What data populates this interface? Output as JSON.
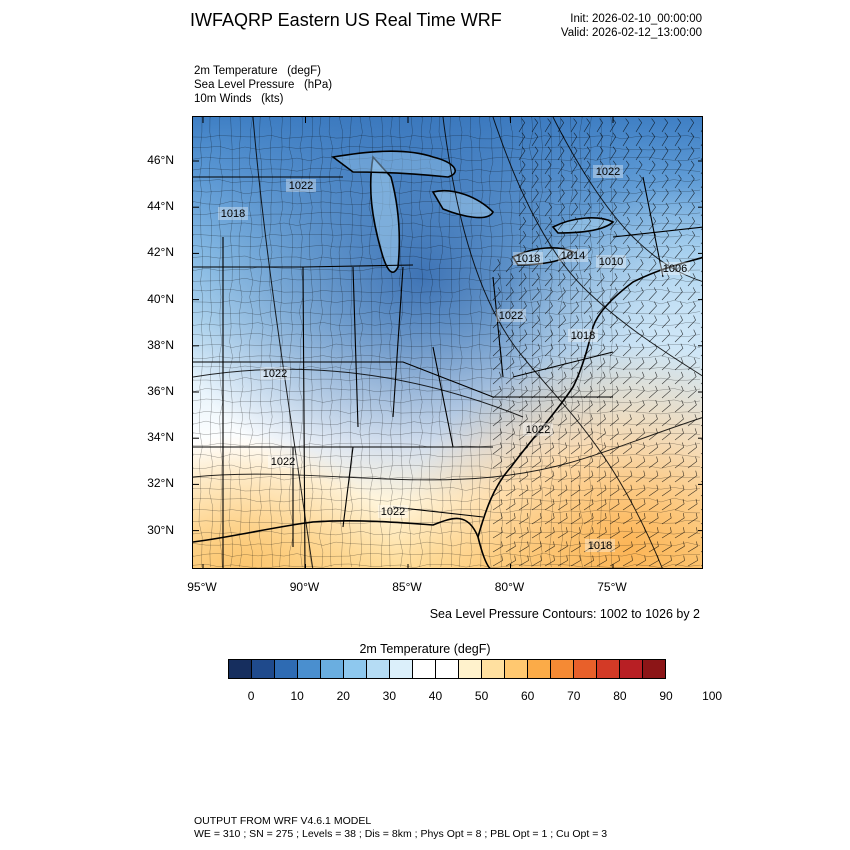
{
  "header": {
    "title": "IWFAQRP Eastern US Real Time WRF",
    "init": "Init: 2026-02-10_00:00:00",
    "valid": "Valid: 2026-02-12_13:00:00"
  },
  "fields": [
    "2m Temperature   (degF)",
    "Sea Level Pressure   (hPa)",
    "10m Winds   (kts)"
  ],
  "map": {
    "lat_labels": [
      "46°N",
      "44°N",
      "42°N",
      "40°N",
      "38°N",
      "36°N",
      "34°N",
      "32°N",
      "30°N"
    ],
    "lat_values": [
      46,
      44,
      42,
      40,
      38,
      36,
      34,
      32,
      30
    ],
    "lon_labels": [
      "95°W",
      "90°W",
      "85°W",
      "80°W",
      "75°W"
    ],
    "lon_values": [
      -95,
      -90,
      -85,
      -80,
      -75
    ],
    "isobar_labels": [
      "1022",
      "1018",
      "1022",
      "1018",
      "1014",
      "1010",
      "1006",
      "1022",
      "1018",
      "1022",
      "1022",
      "1022",
      "1022",
      "1018"
    ],
    "contour_note": "Sea Level Pressure Contours: 1002 to 1026 by 2"
  },
  "colorbar": {
    "title": "2m Temperature  (degF)",
    "ticks": [
      "0",
      "10",
      "20",
      "30",
      "40",
      "50",
      "60",
      "70",
      "80",
      "90",
      "100"
    ],
    "colors": [
      "#162e5e",
      "#1f4a8c",
      "#2e6bb3",
      "#4a8fcf",
      "#6aaee0",
      "#8ec8ee",
      "#b5dcf4",
      "#dbeffa",
      "#ffffff",
      "#ffffff",
      "#fff2cc",
      "#ffe0a0",
      "#ffc870",
      "#fbab48",
      "#f58a34",
      "#e8602a",
      "#d33a26",
      "#b81f24",
      "#8c1517"
    ]
  },
  "footer": {
    "line1": "OUTPUT FROM WRF V4.6.1 MODEL",
    "line2": "WE = 310 ; SN = 275 ; Levels = 38 ; Dis = 8km ; Phys Opt = 8 ; PBL Opt = 1 ; Cu Opt = 3"
  }
}
